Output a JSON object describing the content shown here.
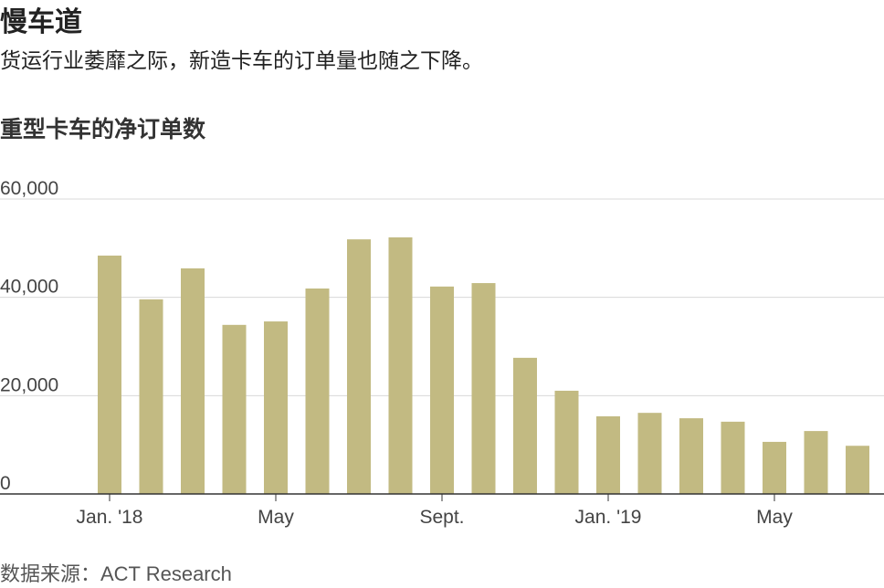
{
  "chart_data": {
    "type": "bar",
    "title": "慢车道",
    "subtitle": "货运行业萎靡之际，新造卡车的订单量也随之下降。",
    "chart_title": "重型卡车的净订单数",
    "source": "数据来源：ACT Research",
    "categories": [
      "Jan. '18",
      null,
      null,
      null,
      "May",
      null,
      null,
      null,
      "Sept.",
      null,
      null,
      null,
      "Jan. '19",
      null,
      null,
      null,
      "May",
      null,
      null
    ],
    "values": [
      48500,
      39600,
      45900,
      34400,
      35100,
      41800,
      51800,
      52200,
      42200,
      42900,
      27700,
      21000,
      15800,
      16500,
      15400,
      14700,
      10600,
      12800,
      9800
    ],
    "color": "#c2ba82",
    "ylim": [
      0,
      60000
    ],
    "yticks": [
      0,
      {
        "value": 20000,
        "label": "20,000"
      },
      {
        "value": 40000,
        "label": "40,000"
      },
      {
        "value": 60000,
        "label": "60,000"
      }
    ],
    "grid": true
  }
}
